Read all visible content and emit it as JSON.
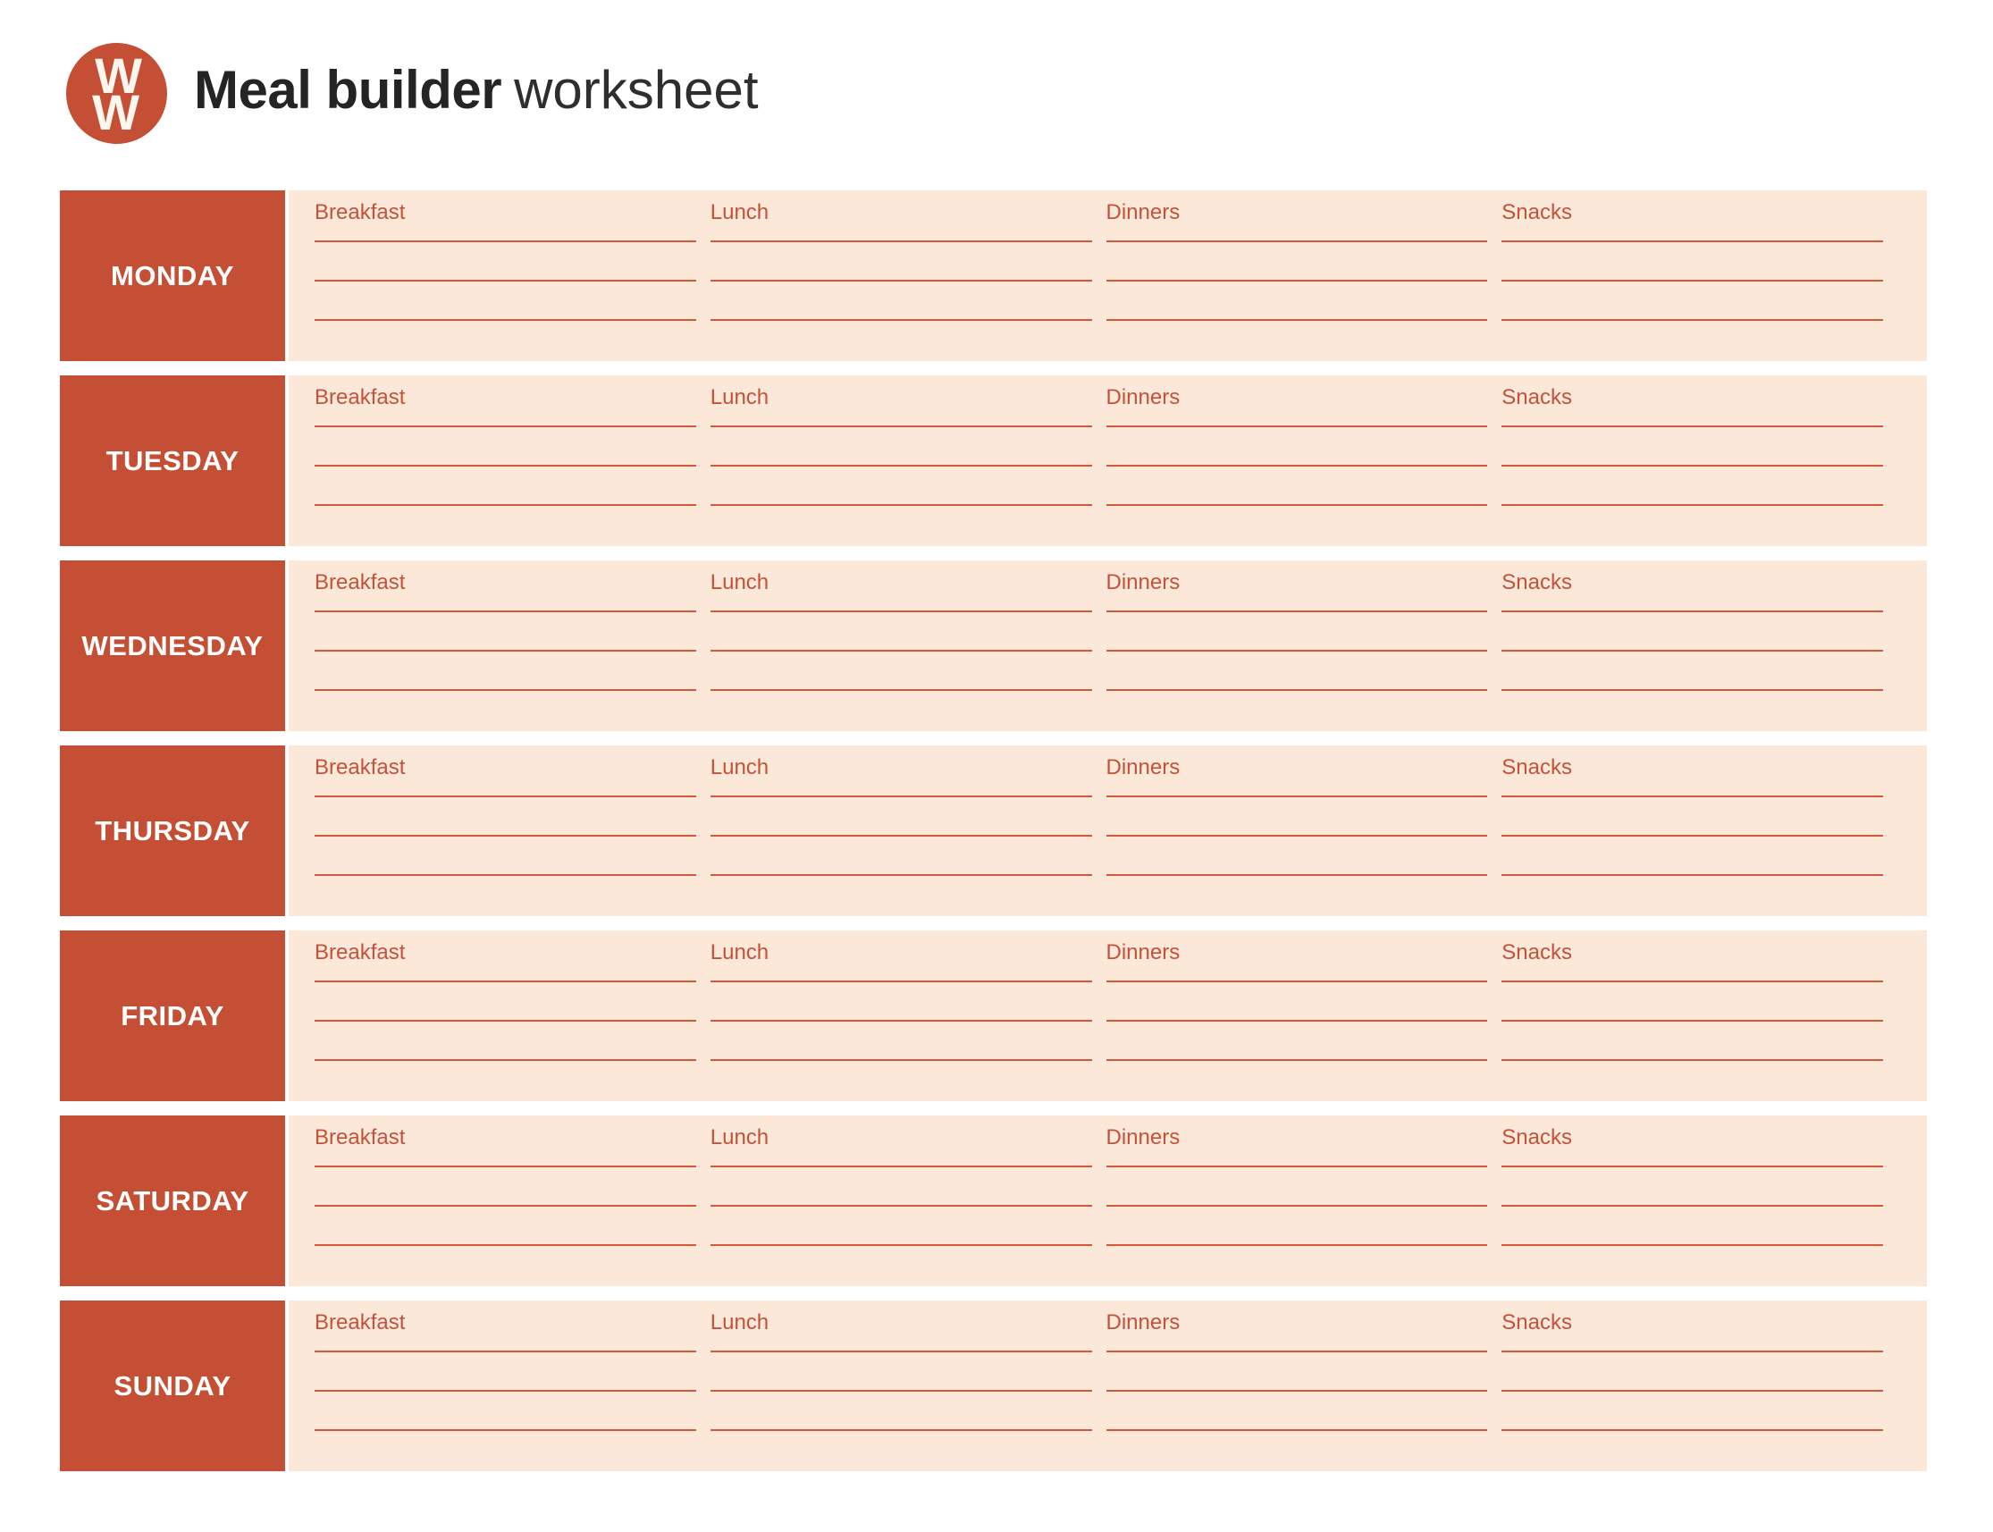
{
  "header": {
    "logo_letters": [
      "W",
      "W"
    ],
    "title_bold": "Meal builder",
    "title_light": "worksheet"
  },
  "table": {
    "days": [
      "MONDAY",
      "TUESDAY",
      "WEDNESDAY",
      "THURSDAY",
      "FRIDAY",
      "SATURDAY",
      "SUNDAY"
    ],
    "meal_headers": [
      "Breakfast",
      "Lunch",
      "Dinners",
      "Snacks"
    ],
    "writing_lines_per_meal": 3
  },
  "colors": {
    "brand_red": "#C54F34",
    "peach_background": "#FBE8D9",
    "rule_line": "#D2593B",
    "meal_label": "#C4523B",
    "title_dark": "#242424",
    "title_light": "#2E2E2E"
  }
}
